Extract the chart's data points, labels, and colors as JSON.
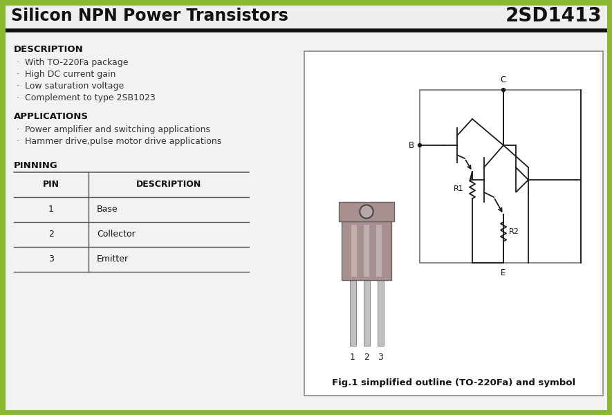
{
  "title_left": "Silicon NPN Power Transistors",
  "title_right": "2SD1413",
  "bg_color": "#f2f2f2",
  "border_color": "#88b830",
  "description_title": "DESCRIPTION",
  "description_items": [
    "With TO-220Fa package",
    "High DC current gain",
    "Low saturation voltage",
    "Complement to type 2SB1023"
  ],
  "applications_title": "APPLICATIONS",
  "applications_items": [
    "Power amplifier and switching applications",
    "Hammer drive,pulse motor drive applications"
  ],
  "pinning_title": "PINNING",
  "pin_headers": [
    "PIN",
    "DESCRIPTION"
  ],
  "pins": [
    [
      "1",
      "Base"
    ],
    [
      "2",
      "Collector"
    ],
    [
      "3",
      "Emitter"
    ]
  ],
  "fig_caption": "Fig.1 simplified outline (TO-220Fa) and symbol",
  "pkg_color": "#a89090",
  "pkg_color2": "#c8b8b8",
  "lead_color": "#c0c0c0",
  "circuit_line_color": "#1a1a1a"
}
